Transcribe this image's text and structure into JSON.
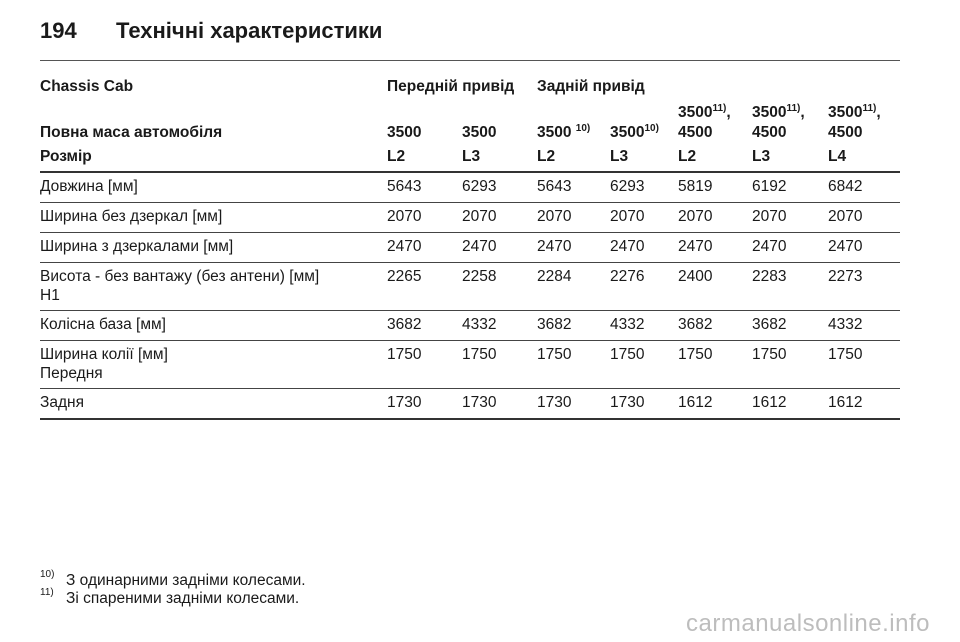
{
  "header": {
    "page_number": "194",
    "title": "Технічні характеристики"
  },
  "table": {
    "group_row": {
      "label": "Chassis Cab",
      "front_drive": "Передній привід",
      "rear_drive": "Задній привід"
    },
    "mass_row": {
      "label": "Повна маса автомобіля",
      "cols": [
        {
          "main": "3500",
          "sup": ""
        },
        {
          "main": "3500",
          "sup": ""
        },
        {
          "main": "3500 ",
          "sup": "10)"
        },
        {
          "main": "3500",
          "sup": "10)"
        },
        {
          "top": "3500",
          "top_sup": "11)",
          "top_after": ",",
          "main": "4500"
        },
        {
          "top": "3500",
          "top_sup": "11)",
          "top_after": ",",
          "main": "4500"
        },
        {
          "top": "3500",
          "top_sup": "11)",
          "top_after": ",",
          "main": "4500"
        }
      ]
    },
    "size_row": {
      "label": "Розмір",
      "values": [
        "L2",
        "L3",
        "L2",
        "L3",
        "L2",
        "L3",
        "L4"
      ]
    },
    "data_rows": [
      {
        "label": "Довжина [мм]",
        "values": [
          "5643",
          "6293",
          "5643",
          "6293",
          "5819",
          "6192",
          "6842"
        ]
      },
      {
        "label": "Ширина без дзеркал [мм]",
        "values": [
          "2070",
          "2070",
          "2070",
          "2070",
          "2070",
          "2070",
          "2070"
        ]
      },
      {
        "label": "Ширина з дзеркалами [мм]",
        "values": [
          "2470",
          "2470",
          "2470",
          "2470",
          "2470",
          "2470",
          "2470"
        ]
      },
      {
        "label": "Висота - без вантажу (без антени) [мм]",
        "label2": "H1",
        "values": [
          "2265",
          "2258",
          "2284",
          "2276",
          "2400",
          "2283",
          "2273"
        ]
      },
      {
        "label": "Колісна база [мм]",
        "values": [
          "3682",
          "4332",
          "3682",
          "4332",
          "3682",
          "3682",
          "4332"
        ]
      },
      {
        "label": "Ширина колії [мм]",
        "label2": "Передня",
        "values": [
          "1750",
          "1750",
          "1750",
          "1750",
          "1750",
          "1750",
          "1750"
        ]
      },
      {
        "label": "Задня",
        "values": [
          "1730",
          "1730",
          "1730",
          "1730",
          "1612",
          "1612",
          "1612"
        ]
      }
    ]
  },
  "footnotes": [
    {
      "mark": "10)",
      "text": "З одинарними задніми колесами."
    },
    {
      "mark": "11)",
      "text": "Зі спареними задніми колесами."
    }
  ],
  "watermark": "carmanualsonline.info"
}
